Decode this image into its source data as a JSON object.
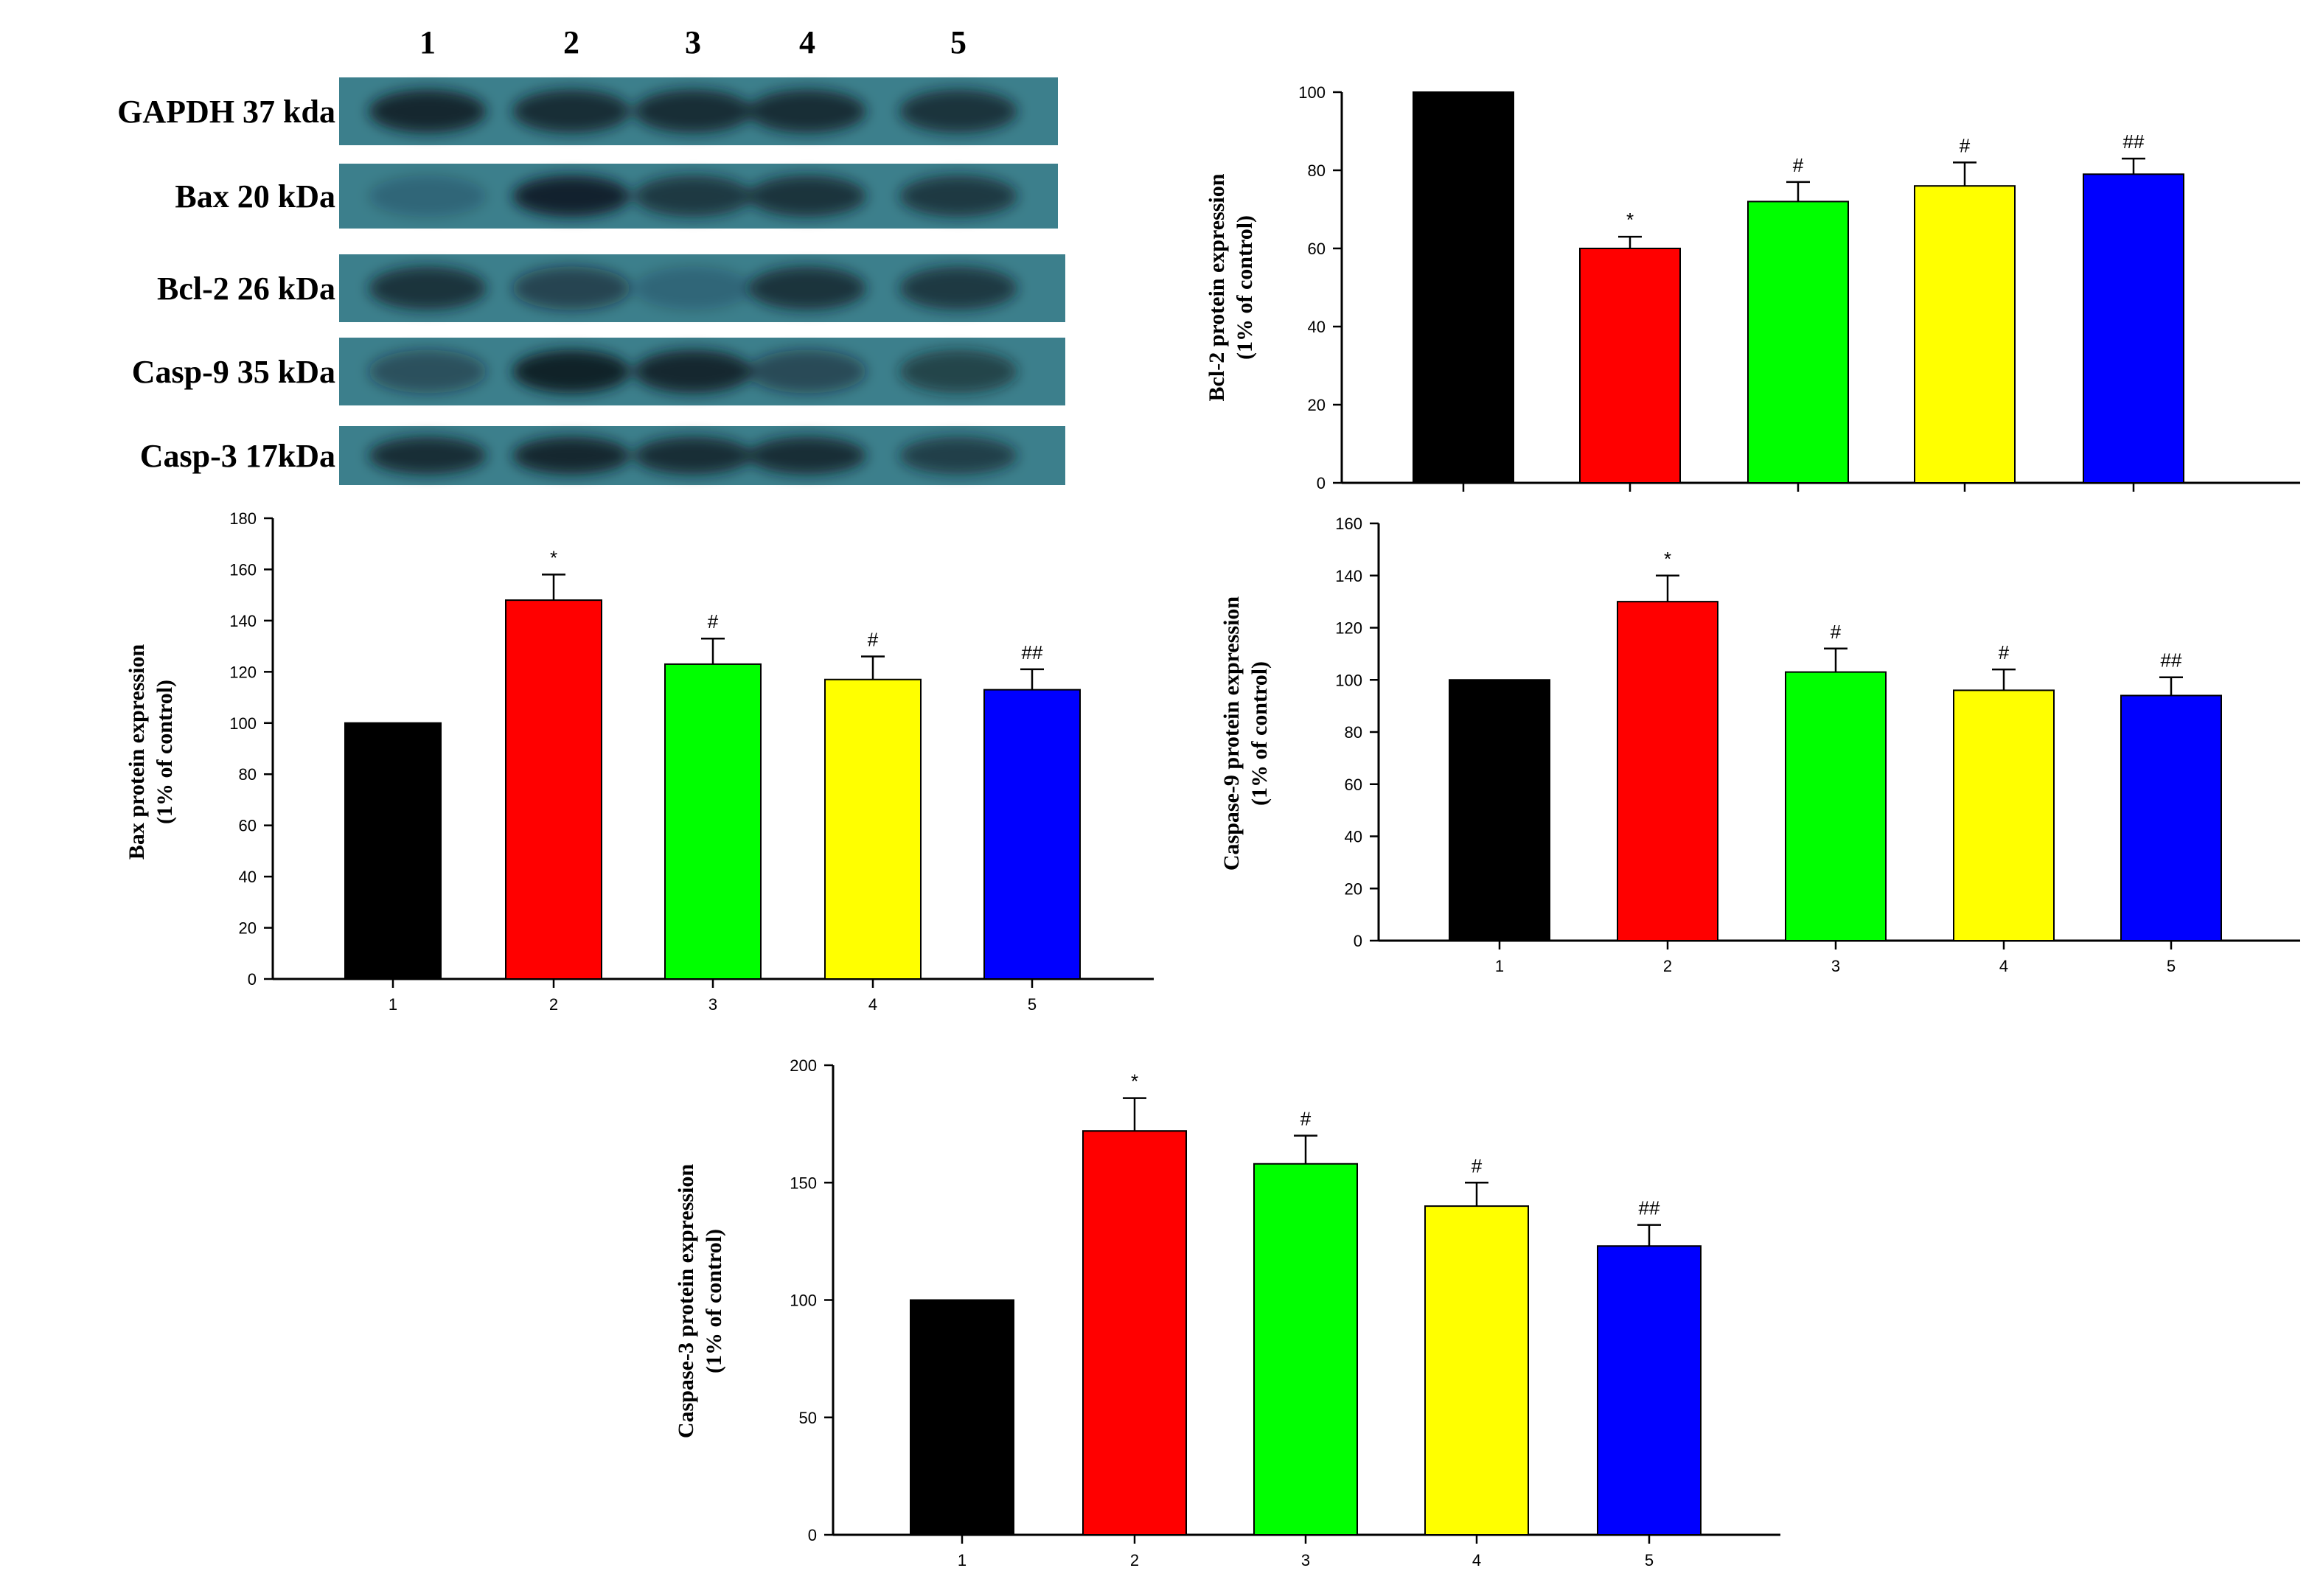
{
  "blot": {
    "lanes": [
      "1",
      "2",
      "3",
      "4",
      "5"
    ],
    "rows": [
      {
        "label": "GAPDH 37 kda",
        "intensity": [
          0.85,
          0.8,
          0.8,
          0.8,
          0.75
        ]
      },
      {
        "label": "Bax   20 kDa",
        "intensity": [
          0.2,
          0.9,
          0.7,
          0.75,
          0.7
        ]
      },
      {
        "label": "Bcl-2  26 kDa",
        "intensity": [
          0.75,
          0.55,
          0.2,
          0.75,
          0.7
        ]
      },
      {
        "label": "Casp-9  35 kDa",
        "intensity": [
          0.45,
          0.95,
          0.85,
          0.5,
          0.6
        ]
      },
      {
        "label": "Casp-3  17kDa",
        "intensity": [
          0.8,
          0.85,
          0.8,
          0.8,
          0.65
        ]
      }
    ]
  },
  "chart_data": [
    {
      "id": "bcl2",
      "type": "bar",
      "title": "",
      "categories": [
        "1",
        "2",
        "3",
        "4",
        "5"
      ],
      "category_labels_shown": false,
      "values": [
        100,
        60,
        72,
        76,
        79
      ],
      "errors": [
        0,
        3,
        5,
        6,
        4
      ],
      "annotations": [
        "",
        "*",
        "#",
        "#",
        "##"
      ],
      "colors": [
        "#000000",
        "#ff0000",
        "#00ff00",
        "#ffff00",
        "#0000ff"
      ],
      "ylabel_line1": "Bcl-2 protein expression",
      "ylabel_line2": "(1% of control)",
      "xlabel": "",
      "ylim": [
        0,
        100
      ],
      "yticks": [
        0,
        20,
        40,
        60,
        80,
        100
      ]
    },
    {
      "id": "bax",
      "type": "bar",
      "title": "",
      "categories": [
        "1",
        "2",
        "3",
        "4",
        "5"
      ],
      "category_labels_shown": true,
      "values": [
        100,
        148,
        123,
        117,
        113
      ],
      "errors": [
        0,
        10,
        10,
        9,
        8
      ],
      "annotations": [
        "",
        "*",
        "#",
        "#",
        "##"
      ],
      "colors": [
        "#000000",
        "#ff0000",
        "#00ff00",
        "#ffff00",
        "#0000ff"
      ],
      "ylabel_line1": "Bax protein expression",
      "ylabel_line2": "(1% of control)",
      "xlabel": "",
      "ylim": [
        0,
        180
      ],
      "yticks": [
        0,
        20,
        40,
        60,
        80,
        100,
        120,
        140,
        160,
        180
      ]
    },
    {
      "id": "casp9",
      "type": "bar",
      "title": "",
      "categories": [
        "1",
        "2",
        "3",
        "4",
        "5"
      ],
      "category_labels_shown": true,
      "values": [
        100,
        130,
        103,
        96,
        94
      ],
      "errors": [
        0,
        10,
        9,
        8,
        7
      ],
      "annotations": [
        "",
        "*",
        "#",
        "#",
        "##"
      ],
      "colors": [
        "#000000",
        "#ff0000",
        "#00ff00",
        "#ffff00",
        "#0000ff"
      ],
      "ylabel_line1": "Caspase-9 protein expression",
      "ylabel_line2": "(1% of control)",
      "xlabel": "",
      "ylim": [
        0,
        160
      ],
      "yticks": [
        0,
        20,
        40,
        60,
        80,
        100,
        120,
        140,
        160
      ]
    },
    {
      "id": "casp3",
      "type": "bar",
      "title": "",
      "categories": [
        "1",
        "2",
        "3",
        "4",
        "5"
      ],
      "category_labels_shown": true,
      "values": [
        100,
        172,
        158,
        140,
        123
      ],
      "errors": [
        0,
        14,
        12,
        10,
        9
      ],
      "annotations": [
        "",
        "*",
        "#",
        "#",
        "##"
      ],
      "colors": [
        "#000000",
        "#ff0000",
        "#00ff00",
        "#ffff00",
        "#0000ff"
      ],
      "ylabel_line1": "Caspase-3 protein expression",
      "ylabel_line2": "(1% of control)",
      "xlabel": "",
      "ylim": [
        0,
        200
      ],
      "yticks": [
        0,
        50,
        100,
        150,
        200
      ]
    }
  ]
}
